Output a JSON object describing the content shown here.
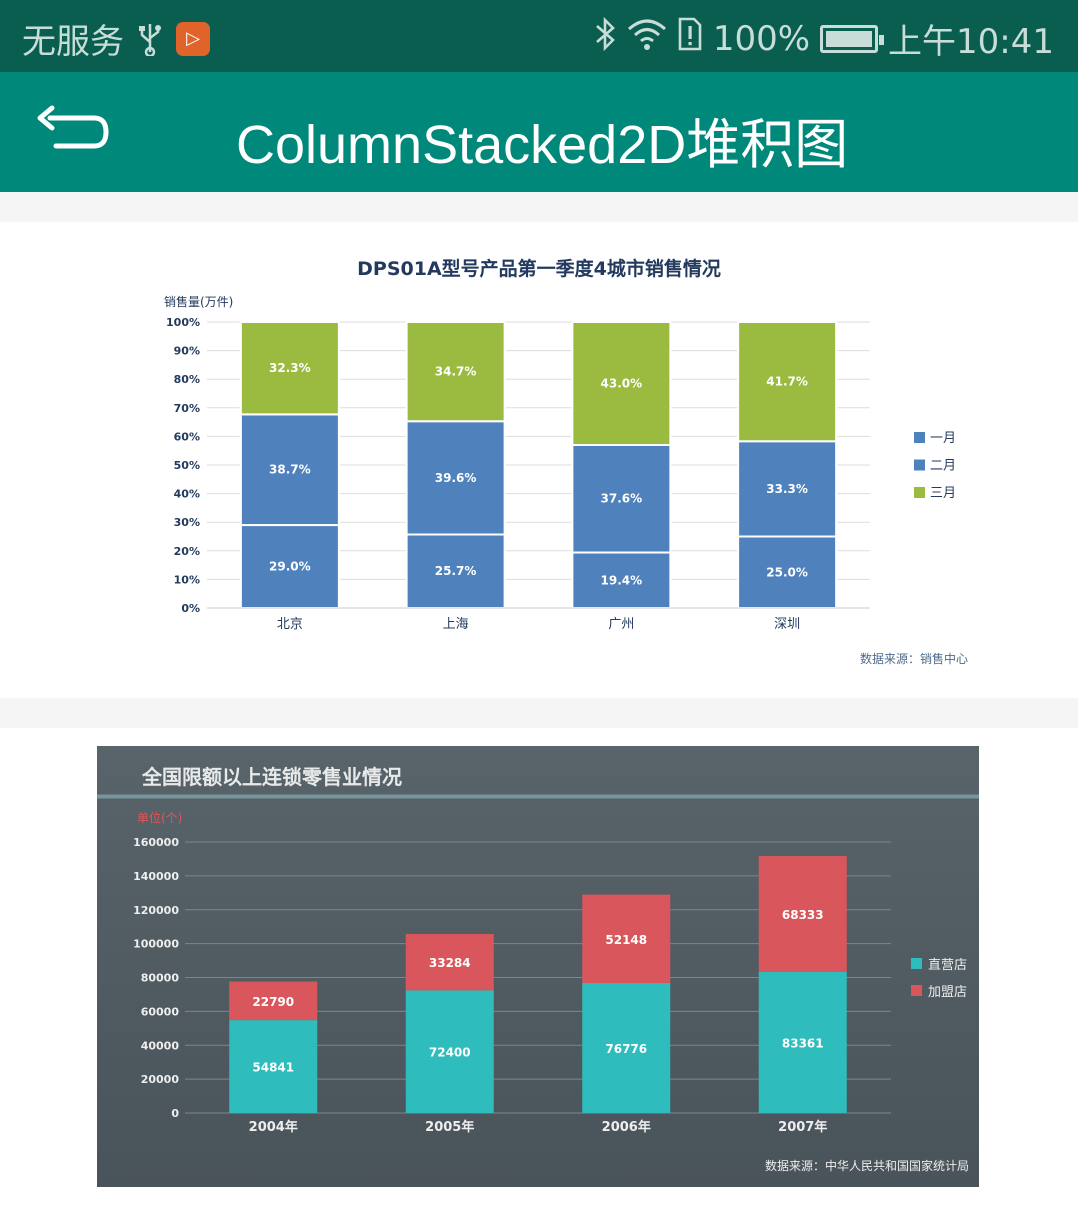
{
  "status_bar": {
    "carrier": "无服务",
    "battery": "100%",
    "time": "上午10:41",
    "icons": [
      "usb-icon",
      "app-icon",
      "bluetooth-icon",
      "wifi-icon",
      "sim-alert-icon",
      "battery-icon"
    ]
  },
  "app_bar": {
    "title": "ColumnStacked2D堆积图",
    "back_icon": "back-arrow-icon"
  },
  "colors": {
    "appbar": "#00897b",
    "statusbar": "#0a5e4f",
    "chart1_blue": "#4f81bd",
    "chart1_green": "#9bbb40",
    "chart2_teal": "#2fbcbc",
    "chart2_red": "#d9575c"
  },
  "chart_data": [
    {
      "type": "bar",
      "stacked": true,
      "percent": true,
      "title": "DPS01A型号产品第一季度4城市销售情况",
      "ylabel": "销售量(万件)",
      "categories": [
        "北京",
        "上海",
        "广州",
        "深圳"
      ],
      "yticks": [
        "0%",
        "10%",
        "20%",
        "30%",
        "40%",
        "50%",
        "60%",
        "70%",
        "80%",
        "90%",
        "100%"
      ],
      "ylim": [
        0,
        100
      ],
      "series": [
        {
          "name": "一月",
          "values": [
            29.0,
            25.7,
            19.4,
            25.0
          ],
          "labels": [
            "29.0%",
            "25.7%",
            "19.4%",
            "25.0%"
          ],
          "color": "#4f81bd"
        },
        {
          "name": "二月",
          "values": [
            38.7,
            39.6,
            37.6,
            33.3
          ],
          "labels": [
            "38.7%",
            "39.6%",
            "37.6%",
            "33.3%"
          ],
          "color": "#4f81bd"
        },
        {
          "name": "三月",
          "values": [
            32.3,
            34.7,
            43.0,
            41.7
          ],
          "labels": [
            "32.3%",
            "34.7%",
            "43.0%",
            "41.7%"
          ],
          "color": "#9bbb40"
        }
      ],
      "legend_position": "right",
      "grid": true,
      "source": "数据来源：销售中心"
    },
    {
      "type": "bar",
      "stacked": true,
      "title": "全国限额以上连锁零售业情况",
      "ylabel": "单位(个)",
      "categories": [
        "2004年",
        "2005年",
        "2006年",
        "2007年"
      ],
      "yticks": [
        "0",
        "20000",
        "40000",
        "60000",
        "80000",
        "100000",
        "120000",
        "140000",
        "160000"
      ],
      "ylim": [
        0,
        160000
      ],
      "series": [
        {
          "name": "直营店",
          "values": [
            54841,
            72400,
            76776,
            83361
          ],
          "labels": [
            "54841",
            "72400",
            "76776",
            "83361"
          ],
          "color": "#2fbcbc"
        },
        {
          "name": "加盟店",
          "values": [
            22790,
            33284,
            52148,
            68333
          ],
          "labels": [
            "22790",
            "33284",
            "52148",
            "68333"
          ],
          "color": "#d9575c"
        }
      ],
      "legend_position": "right",
      "grid": true,
      "source": "数据来源：中华人民共和国国家统计局"
    }
  ]
}
